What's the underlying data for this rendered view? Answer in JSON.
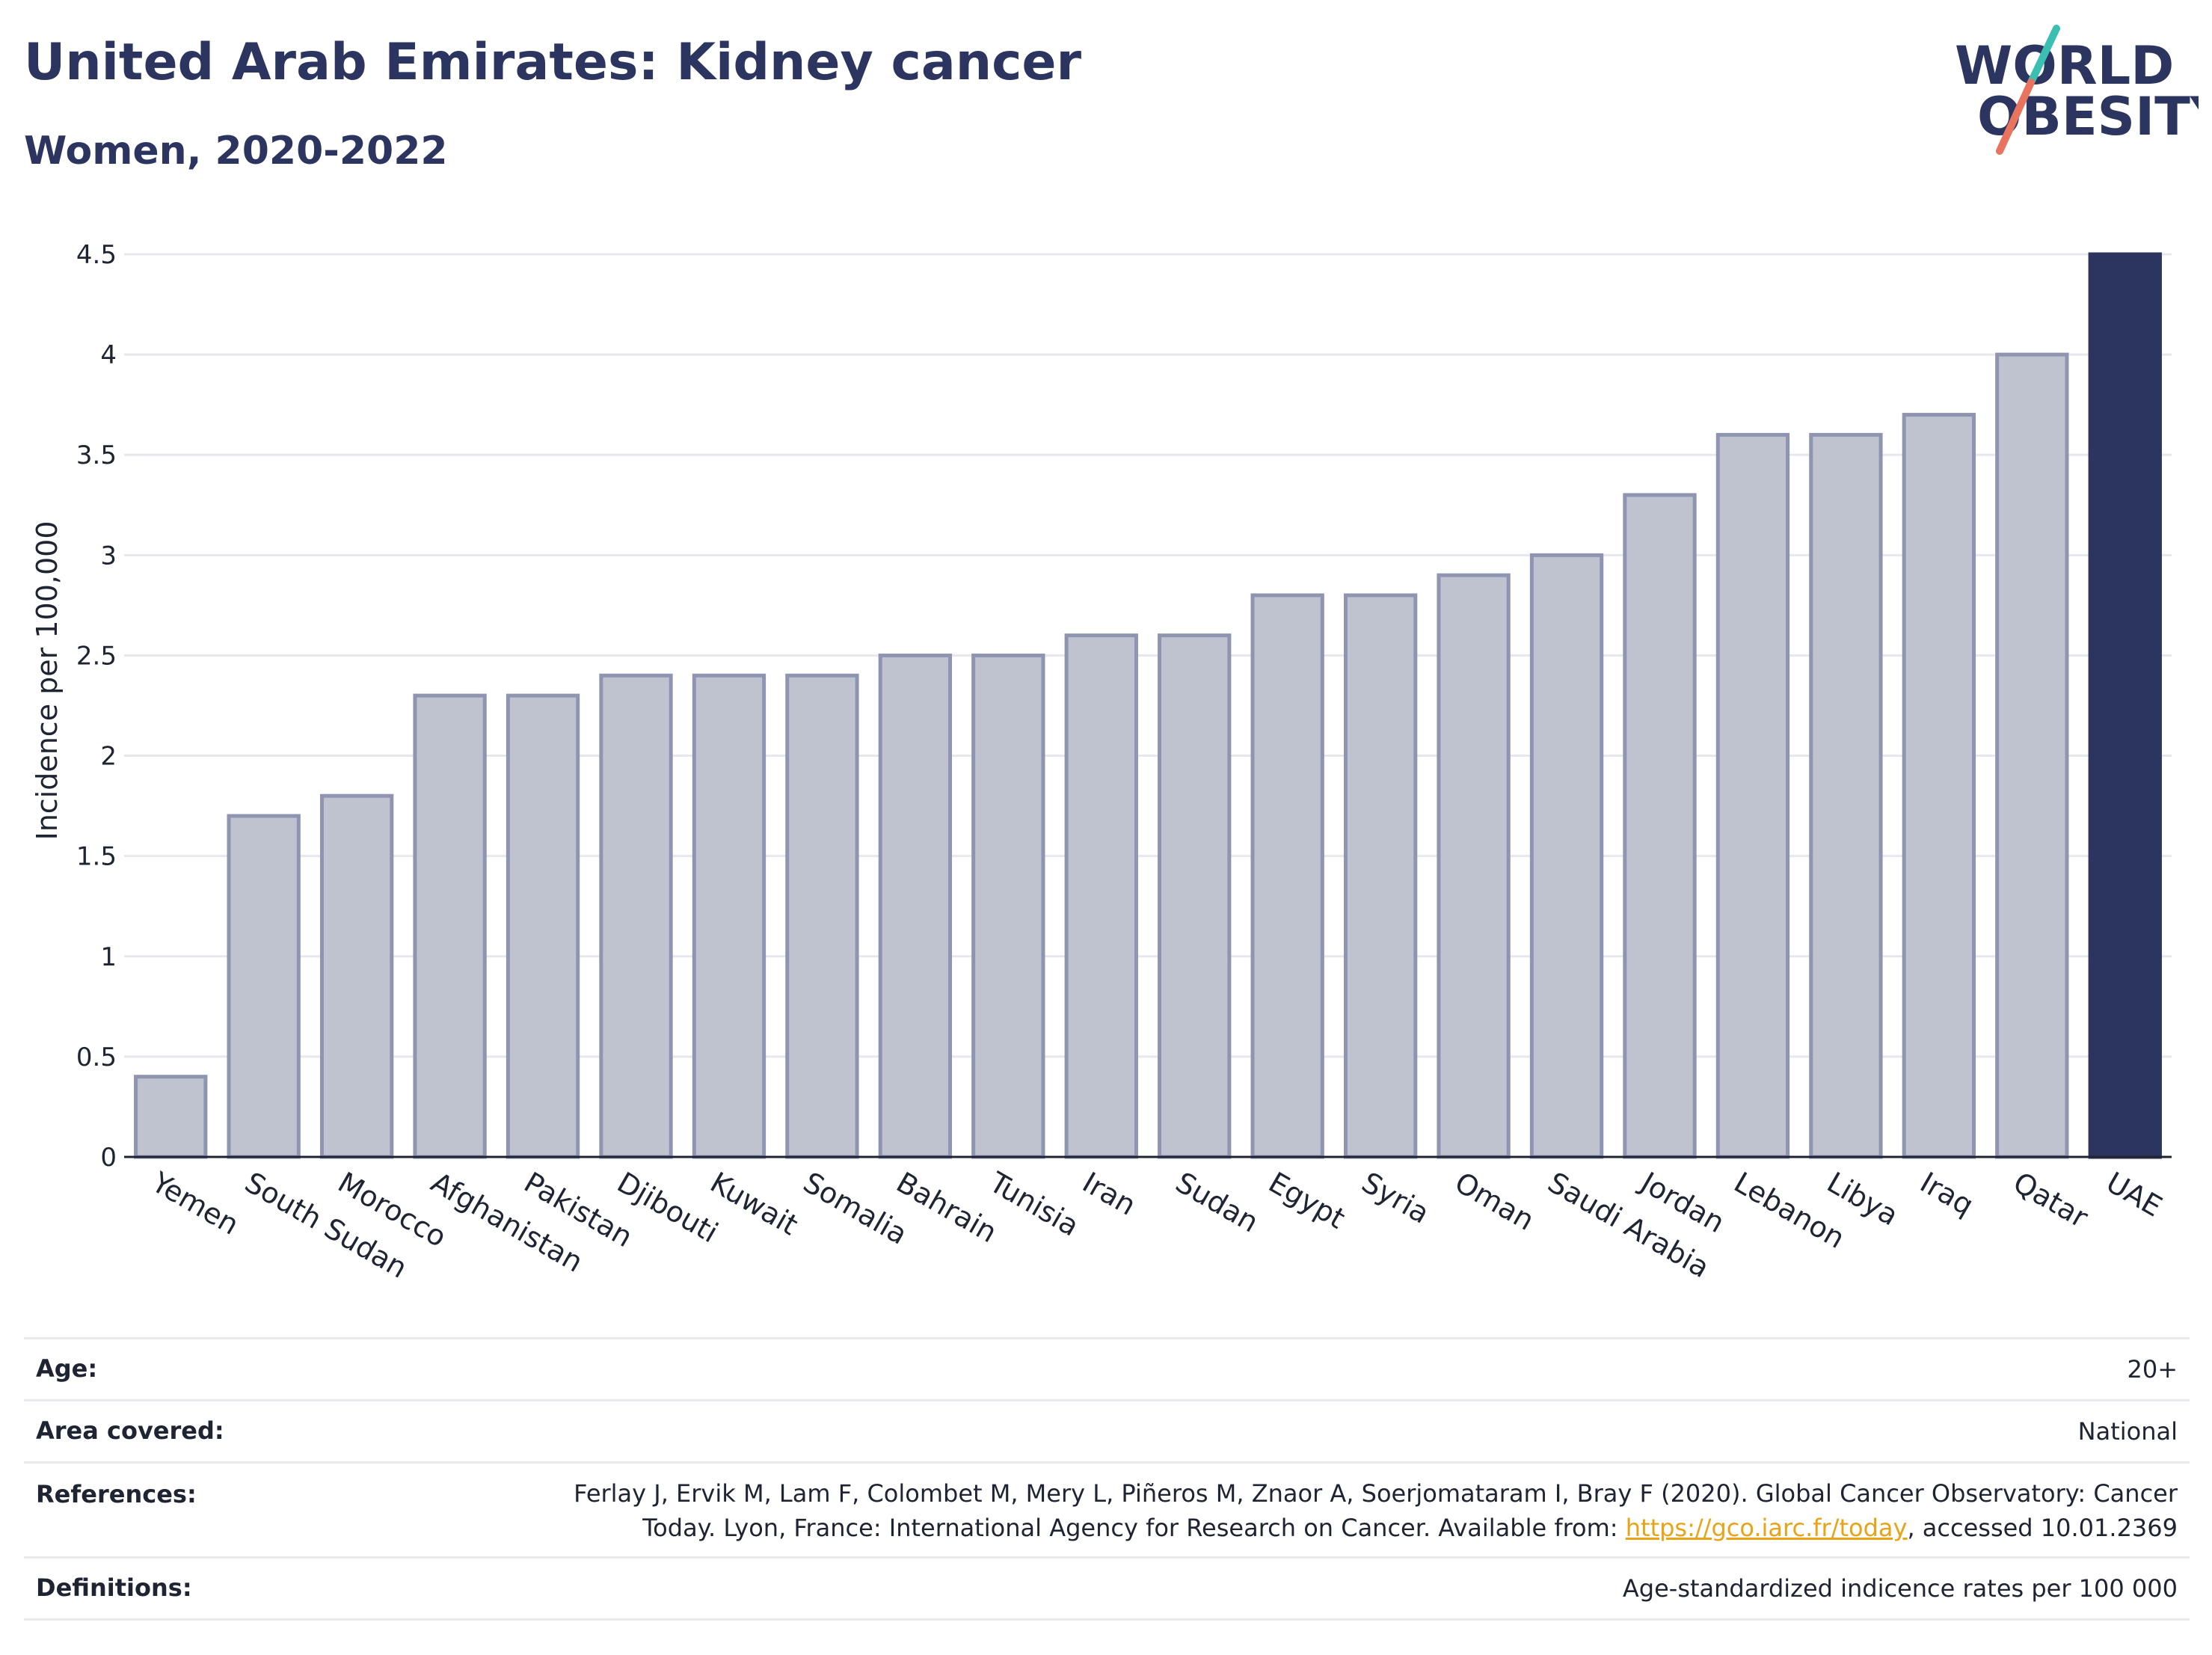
{
  "header": {
    "title": "United Arab Emirates: Kidney cancer",
    "subtitle": "Women, 2020-2022"
  },
  "logo": {
    "line1": "WORLD",
    "line2": "OBESITY",
    "accent_colors": [
      "#3bbfb3",
      "#e8735f"
    ]
  },
  "colors": {
    "bar_default": "#bfc3d0",
    "bar_border": "#8f95b0",
    "bar_highlight": "#2c3560",
    "grid": "#e6e8ee",
    "title": "#2c3560"
  },
  "chart_data": {
    "type": "bar",
    "title": "United Arab Emirates: Kidney cancer",
    "subtitle": "Women, 2020-2022",
    "ylabel": "Incidence per 100,000",
    "xlabel": "",
    "ylim": [
      0,
      4.5
    ],
    "yticks": [
      0,
      0.5,
      1,
      1.5,
      2,
      2.5,
      3,
      3.5,
      4,
      4.5
    ],
    "ytick_labels": [
      "0",
      "0.5",
      "1",
      "1.5",
      "2",
      "2.5",
      "3",
      "3.5",
      "4",
      "4.5"
    ],
    "grid": true,
    "highlight": "UAE",
    "categories": [
      "Yemen",
      "South Sudan",
      "Morocco",
      "Afghanistan",
      "Pakistan",
      "Djibouti",
      "Kuwait",
      "Somalia",
      "Bahrain",
      "Tunisia",
      "Iran",
      "Sudan",
      "Egypt",
      "Syria",
      "Oman",
      "Saudi Arabia",
      "Jordan",
      "Lebanon",
      "Libya",
      "Iraq",
      "Qatar",
      "UAE"
    ],
    "values": [
      0.4,
      1.7,
      1.8,
      2.3,
      2.3,
      2.4,
      2.4,
      2.4,
      2.5,
      2.5,
      2.6,
      2.6,
      2.8,
      2.8,
      2.9,
      3.0,
      3.3,
      3.6,
      3.6,
      3.7,
      4.0,
      4.5
    ]
  },
  "meta": {
    "age_label": "Age:",
    "age_value": "20+",
    "area_label": "Area covered:",
    "area_value": "National",
    "references_label": "References:",
    "references_line1": "Ferlay J, Ervik M, Lam F, Colombet M, Mery L, Piñeros M, Znaor A, Soerjomataram I, Bray F (2020). Global Cancer Observatory: Cancer",
    "references_line2_prefix": "Today. Lyon, France: International Agency for Research on Cancer. Available from: ",
    "references_link": "https://gco.iarc.fr/today",
    "references_line2_suffix": ", accessed 10.01.2369",
    "definitions_label": "Definitions:",
    "definitions_value": "Age-standardized indicence rates per 100 000"
  }
}
